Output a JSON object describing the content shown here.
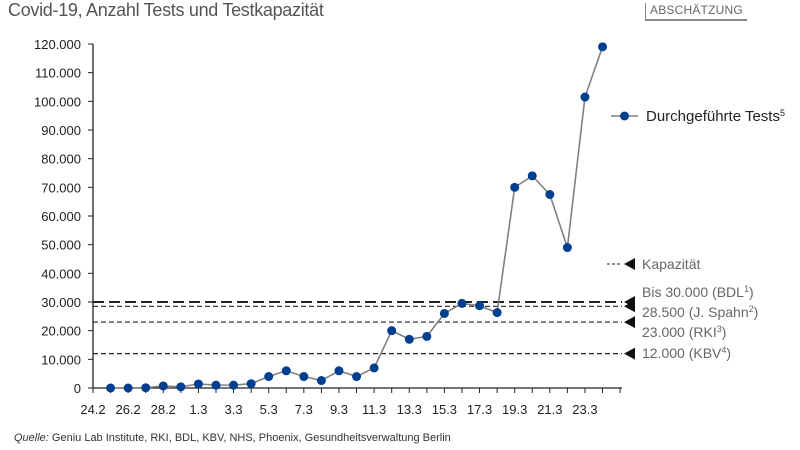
{
  "header": {
    "title": "Covid-19, Anzahl Tests und Testkapazität",
    "badge": "ABSCHÄTZUNG"
  },
  "footer": {
    "source_label": "Quelle:",
    "source_text": " Geniu Lab Institute, RKI, BDL, KBV, NHS, Phoenix, Gesundheitsverwaltung Berlin"
  },
  "chart_data": {
    "type": "line",
    "title": "Covid-19, Anzahl Tests und Testkapazität",
    "xlabel": "",
    "ylabel": "",
    "ylim": [
      0,
      120000
    ],
    "yticks": [
      0,
      10000,
      20000,
      30000,
      40000,
      50000,
      60000,
      70000,
      80000,
      90000,
      100000,
      110000,
      120000
    ],
    "ytick_labels": [
      "0",
      "10.000",
      "20.000",
      "30.000",
      "40.000",
      "50.000",
      "60.000",
      "70.000",
      "80.000",
      "90.000",
      "100.000",
      "110.000",
      "120.000"
    ],
    "x_tick_labels": [
      "24.2",
      "26.2",
      "28.2",
      "1.3",
      "3.3",
      "5.3",
      "7.3",
      "9.3",
      "11.3",
      "13.3",
      "15.3",
      "17.3",
      "19.3",
      "21.3",
      "23.3"
    ],
    "x": [
      "25.2",
      "26.2",
      "27.2",
      "28.2",
      "29.2",
      "1.3",
      "2.3",
      "3.3",
      "4.3",
      "5.3",
      "6.3",
      "7.3",
      "8.3",
      "9.3",
      "10.3",
      "11.3",
      "12.3",
      "13.3",
      "14.3",
      "15.3",
      "16.3",
      "17.3",
      "18.3",
      "19.3",
      "20.3",
      "21.3",
      "22.3",
      "23.3",
      "24.3"
    ],
    "series": [
      {
        "name": "Durchgeführte Tests",
        "superscript": "5",
        "color": "#003f8f",
        "line_color": "#808080",
        "values": [
          0,
          0,
          100,
          700,
          400,
          1400,
          1000,
          1000,
          1500,
          4000,
          6000,
          4000,
          2600,
          6000,
          4000,
          7000,
          20000,
          17000,
          18000,
          26000,
          29500,
          28700,
          26300,
          70000,
          74000,
          67500,
          49000,
          101500,
          119000
        ]
      }
    ],
    "reference_lines": [
      {
        "value": 30000,
        "label": "Bis 30.000 (BDL",
        "sup": "1",
        "suffix": ")",
        "style": "long-dash"
      },
      {
        "value": 28500,
        "label": "28.500 (J. Spahn",
        "sup": "2",
        "suffix": ")",
        "style": "dash"
      },
      {
        "value": 23000,
        "label": "23.000 (RKI",
        "sup": "3",
        "suffix": ")",
        "style": "dash"
      },
      {
        "value": 12000,
        "label": "12.000 (KBV",
        "sup": "4",
        "suffix": ")",
        "style": "dash"
      }
    ],
    "capacity_legend": "Kapazität",
    "legend_position": "right",
    "grid": false
  }
}
